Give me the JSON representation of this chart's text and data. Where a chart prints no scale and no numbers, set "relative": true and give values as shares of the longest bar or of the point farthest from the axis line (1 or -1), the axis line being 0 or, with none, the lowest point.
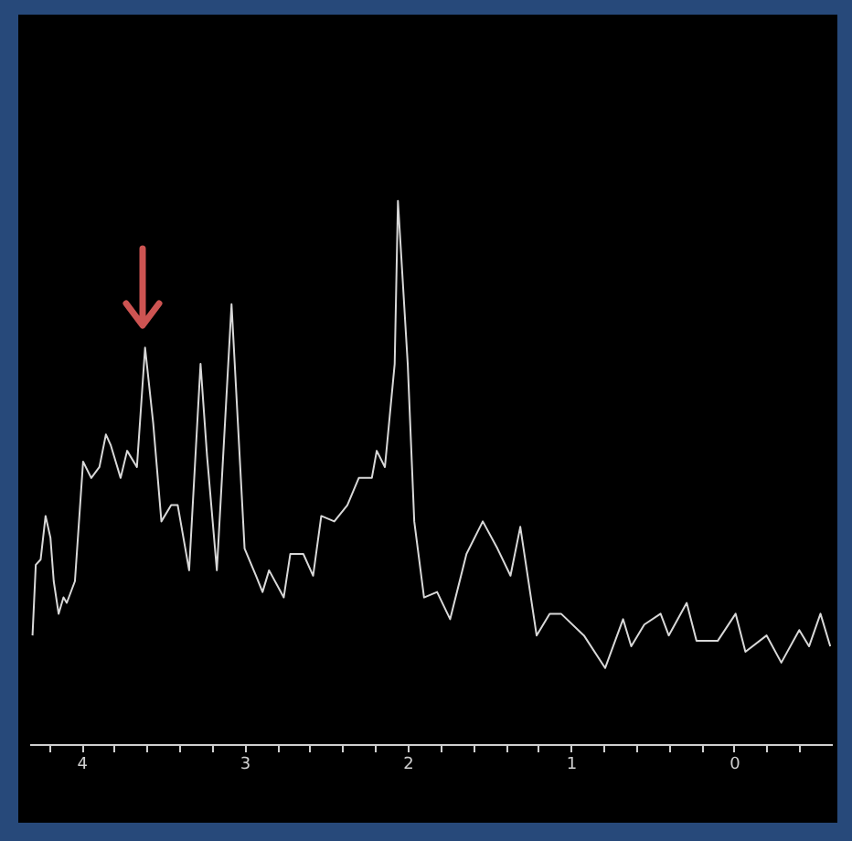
{
  "chart_data": {
    "type": "line",
    "relative": true,
    "tick_labels": "x",
    "x": [
      4.3,
      4.28,
      4.25,
      4.22,
      4.19,
      4.17,
      4.14,
      4.11,
      4.09,
      4.04,
      3.99,
      3.94,
      3.89,
      3.85,
      3.82,
      3.76,
      3.72,
      3.66,
      3.61,
      3.56,
      3.51,
      3.45,
      3.41,
      3.34,
      3.27,
      3.23,
      3.17,
      3.08,
      3.0,
      2.93,
      2.89,
      2.85,
      2.76,
      2.72,
      2.64,
      2.58,
      2.53,
      2.45,
      2.37,
      2.3,
      2.22,
      2.19,
      2.14,
      2.08,
      2.06,
      2.0,
      1.96,
      1.9,
      1.82,
      1.74,
      1.64,
      1.54,
      1.45,
      1.37,
      1.31,
      1.21,
      1.13,
      1.06,
      0.92,
      0.79,
      0.68,
      0.63,
      0.55,
      0.45,
      0.4,
      0.29,
      0.23,
      0.1,
      -0.01,
      -0.07,
      -0.2,
      -0.29,
      -0.4,
      -0.46,
      -0.53,
      -0.59
    ],
    "series": [
      {
        "color": "#d8d8d8",
        "values": [
          0.2,
          0.33,
          0.34,
          0.42,
          0.38,
          0.3,
          0.24,
          0.27,
          0.26,
          0.3,
          0.52,
          0.49,
          0.51,
          0.57,
          0.55,
          0.49,
          0.54,
          0.51,
          0.73,
          0.59,
          0.41,
          0.44,
          0.44,
          0.32,
          0.7,
          0.53,
          0.32,
          0.81,
          0.36,
          0.31,
          0.28,
          0.32,
          0.27,
          0.35,
          0.35,
          0.31,
          0.42,
          0.41,
          0.44,
          0.49,
          0.49,
          0.54,
          0.51,
          0.7,
          1,
          0.7,
          0.41,
          0.27,
          0.28,
          0.23,
          0.35,
          0.41,
          0.36,
          0.31,
          0.4,
          0.2,
          0.24,
          0.24,
          0.2,
          0.14,
          0.23,
          0.18,
          0.22,
          0.24,
          0.2,
          0.26,
          0.19,
          0.19,
          0.24,
          0.17,
          0.2,
          0.15,
          0.21,
          0.18,
          0.24,
          0.18
        ]
      }
    ],
    "xlim": [
      4.32,
      -0.6
    ],
    "xticks": [
      {
        "value": 4.2,
        "label": null
      },
      4,
      {
        "value": 3.8,
        "label": null
      },
      {
        "value": 3.6,
        "label": null
      },
      {
        "value": 3.4,
        "label": null
      },
      {
        "value": 3.2,
        "label": null
      },
      3,
      {
        "value": 2.8,
        "label": null
      },
      {
        "value": 2.6,
        "label": null
      },
      {
        "value": 2.4,
        "label": null
      },
      {
        "value": 2.2,
        "label": null
      },
      2,
      {
        "value": 1.8,
        "label": null
      },
      {
        "value": 1.6,
        "label": null
      },
      {
        "value": 1.4,
        "label": null
      },
      {
        "value": 1.2,
        "label": null
      },
      1,
      {
        "value": 0.8,
        "label": null
      },
      {
        "value": 0.6,
        "label": null
      },
      {
        "value": 0.4,
        "label": null
      },
      {
        "value": 0.2,
        "label": null
      },
      0,
      {
        "value": -0.2,
        "label": null
      },
      {
        "value": -0.4,
        "label": null
      }
    ]
  }
}
